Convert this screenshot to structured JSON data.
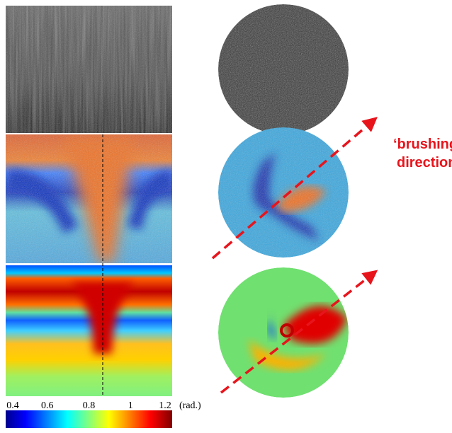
{
  "colorbar": {
    "ticks": [
      0.4,
      0.6,
      0.8,
      1,
      1.2
    ],
    "unit": "(rad.)"
  },
  "annotation": {
    "lines": [
      "‘brushing",
      "direction’"
    ]
  }
}
